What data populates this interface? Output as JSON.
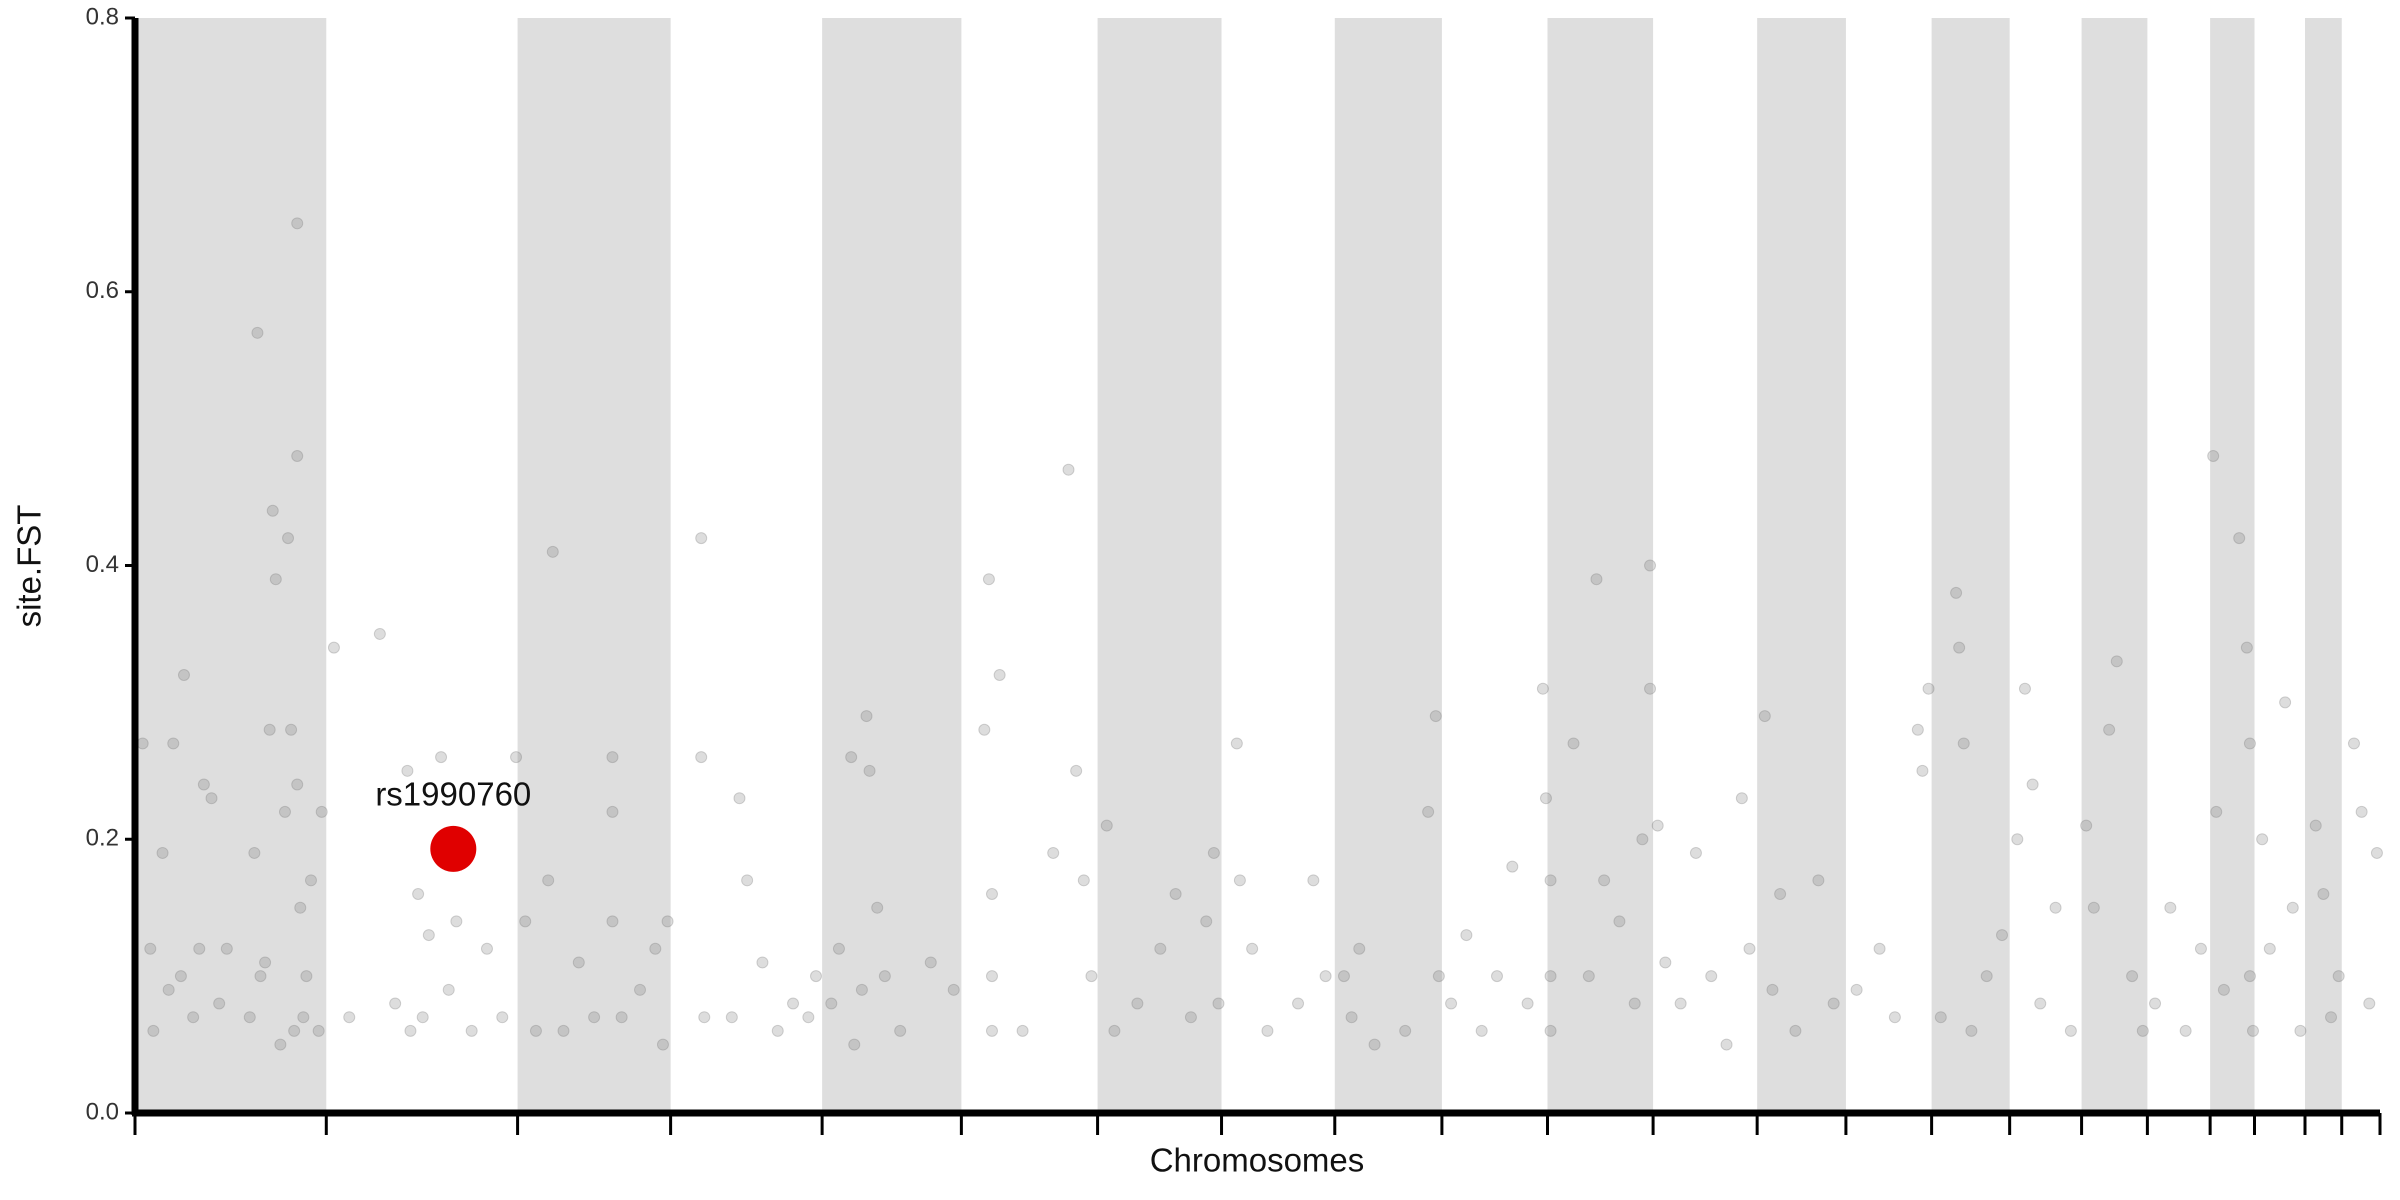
{
  "chart_data": {
    "type": "scatter",
    "xlabel": "Chromosomes",
    "ylabel": "site.FST",
    "xlim": [
      0,
      1467
    ],
    "ylim": [
      0,
      0.8
    ],
    "yticks": [
      {
        "value": 0,
        "label": "0.0"
      },
      0.2,
      0.4,
      0.6,
      0.8
    ],
    "xticks": [
      0,
      125,
      250,
      350,
      449,
      540,
      629,
      710,
      784,
      854,
      923,
      992,
      1060,
      1118,
      1174,
      1225,
      1272,
      1315,
      1356,
      1385,
      1418,
      1442,
      1467
    ],
    "band_color": "#dedede",
    "color": "#777777",
    "x": [
      5,
      10,
      12,
      18,
      22,
      25,
      30,
      32,
      38,
      42,
      45,
      50,
      55,
      60,
      75,
      78,
      80,
      82,
      85,
      88,
      90,
      92,
      95,
      98,
      100,
      102,
      104,
      106,
      106,
      106,
      108,
      110,
      112,
      115,
      120,
      122,
      130,
      140,
      160,
      170,
      180,
      178,
      185,
      188,
      192,
      200,
      205,
      210,
      220,
      230,
      240,
      249,
      255,
      262,
      270,
      273,
      280,
      290,
      300,
      312,
      312,
      312,
      318,
      330,
      340,
      345,
      348,
      370,
      370,
      372,
      390,
      395,
      400,
      410,
      420,
      430,
      440,
      445,
      455,
      460,
      468,
      470,
      475,
      478,
      480,
      485,
      490,
      500,
      520,
      535,
      555,
      558,
      560,
      560,
      560,
      565,
      580,
      600,
      610,
      615,
      620,
      625,
      635,
      640,
      655,
      670,
      680,
      690,
      700,
      705,
      708,
      720,
      722,
      730,
      740,
      760,
      770,
      778,
      790,
      795,
      800,
      810,
      830,
      845,
      850,
      852,
      860,
      870,
      880,
      890,
      900,
      910,
      920,
      922,
      925,
      925,
      925,
      940,
      950,
      955,
      960,
      970,
      980,
      985,
      990,
      990,
      995,
      1000,
      1010,
      1020,
      1030,
      1040,
      1050,
      1055,
      1065,
      1070,
      1075,
      1085,
      1100,
      1110,
      1125,
      1140,
      1150,
      1165,
      1168,
      1172,
      1180,
      1190,
      1192,
      1195,
      1200,
      1210,
      1220,
      1230,
      1235,
      1240,
      1245,
      1255,
      1265,
      1275,
      1280,
      1290,
      1295,
      1305,
      1312,
      1320,
      1330,
      1340,
      1350,
      1358,
      1360,
      1365,
      1375,
      1380,
      1382,
      1382,
      1384,
      1390,
      1395,
      1405,
      1410,
      1415,
      1425,
      1430,
      1435,
      1440,
      1450,
      1455,
      1460,
      1465
    ],
    "values": [
      0.27,
      0.12,
      0.06,
      0.19,
      0.09,
      0.27,
      0.1,
      0.32,
      0.07,
      0.12,
      0.24,
      0.23,
      0.08,
      0.12,
      0.07,
      0.19,
      0.57,
      0.1,
      0.11,
      0.28,
      0.44,
      0.39,
      0.05,
      0.22,
      0.42,
      0.28,
      0.06,
      0.65,
      0.48,
      0.24,
      0.15,
      0.07,
      0.1,
      0.17,
      0.06,
      0.22,
      0.34,
      0.07,
      0.35,
      0.08,
      0.06,
      0.25,
      0.16,
      0.07,
      0.13,
      0.26,
      0.09,
      0.14,
      0.06,
      0.12,
      0.07,
      0.26,
      0.14,
      0.06,
      0.17,
      0.41,
      0.06,
      0.11,
      0.07,
      0.26,
      0.22,
      0.14,
      0.07,
      0.09,
      0.12,
      0.05,
      0.14,
      0.42,
      0.26,
      0.07,
      0.07,
      0.23,
      0.17,
      0.11,
      0.06,
      0.08,
      0.07,
      0.1,
      0.08,
      0.12,
      0.26,
      0.05,
      0.09,
      0.29,
      0.25,
      0.15,
      0.1,
      0.06,
      0.11,
      0.09,
      0.28,
      0.39,
      0.16,
      0.1,
      0.06,
      0.32,
      0.06,
      0.19,
      0.47,
      0.25,
      0.17,
      0.1,
      0.21,
      0.06,
      0.08,
      0.12,
      0.16,
      0.07,
      0.14,
      0.19,
      0.08,
      0.27,
      0.17,
      0.12,
      0.06,
      0.08,
      0.17,
      0.1,
      0.1,
      0.07,
      0.12,
      0.05,
      0.06,
      0.22,
      0.29,
      0.1,
      0.08,
      0.13,
      0.06,
      0.1,
      0.18,
      0.08,
      0.31,
      0.23,
      0.17,
      0.1,
      0.06,
      0.27,
      0.1,
      0.39,
      0.17,
      0.14,
      0.08,
      0.2,
      0.4,
      0.31,
      0.21,
      0.11,
      0.08,
      0.19,
      0.1,
      0.05,
      0.23,
      0.12,
      0.29,
      0.09,
      0.16,
      0.06,
      0.17,
      0.08,
      0.09,
      0.12,
      0.07,
      0.28,
      0.25,
      0.31,
      0.07,
      0.38,
      0.34,
      0.27,
      0.06,
      0.1,
      0.13,
      0.2,
      0.31,
      0.24,
      0.08,
      0.15,
      0.06,
      0.21,
      0.15,
      0.28,
      0.33,
      0.1,
      0.06,
      0.08,
      0.15,
      0.06,
      0.12,
      0.48,
      0.22,
      0.09,
      0.42,
      0.34,
      0.27,
      0.1,
      0.06,
      0.2,
      0.12,
      0.3,
      0.15,
      0.06,
      0.21,
      0.16,
      0.07,
      0.1,
      0.27,
      0.22,
      0.08,
      0.19
    ],
    "highlight": {
      "label": "rs1990760",
      "x": 208,
      "value": 0.193,
      "color": "#e00000"
    }
  }
}
